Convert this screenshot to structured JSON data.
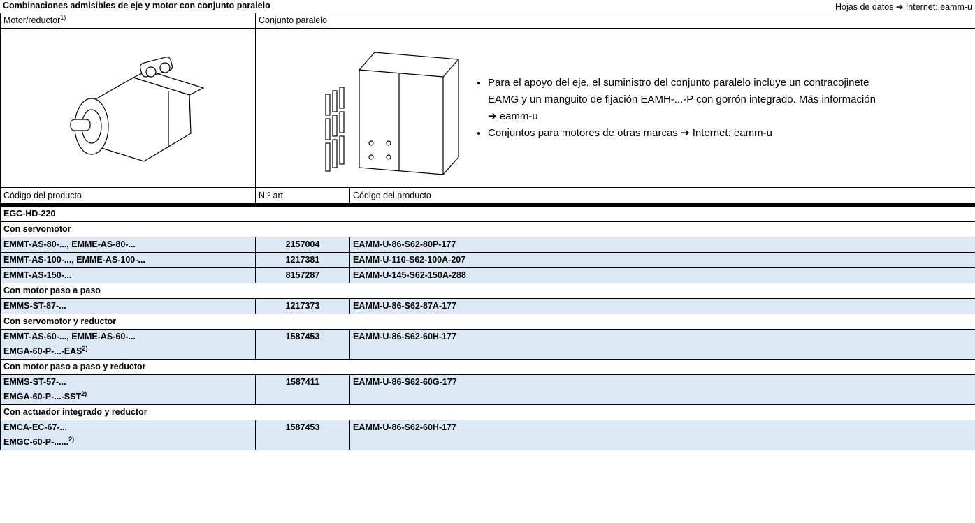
{
  "header": {
    "title": "Combinaciones admisibles de eje y motor con conjunto paralelo",
    "link": "Hojas de datos ➔ Internet: eamm-u"
  },
  "table": {
    "columns": [
      {
        "text": "Motor/reductor",
        "note": "1)"
      },
      {
        "text": "Conjunto paralelo"
      }
    ],
    "bullets": [
      "Para el apoyo del eje, el suministro del conjunto paralelo incluye un contracojinete EAMG y un manguito de fijación EAMH-...-P con gorrón integrado. Más información ➔ eamm-u",
      "Conjuntos para motores de otras marcas ➔ Internet: eamm-u"
    ],
    "subheader": [
      "Código del producto",
      "N.º art.",
      "Código del producto"
    ],
    "axis": "EGC-HD-220",
    "groups": [
      {
        "title": "Con servomotor",
        "rows": [
          {
            "motor": [
              "EMMT-AS-80-..., EMME-AS-80-..."
            ],
            "part_no": 2157004,
            "code": "EAMM-U-86-S62-80P-177"
          },
          {
            "motor": [
              "EMMT-AS-100-..., EMME-AS-100-..."
            ],
            "part_no": 1217381,
            "code": "EAMM-U-110-S62-100A-207"
          },
          {
            "motor": [
              "EMMT-AS-150-..."
            ],
            "part_no": 8157287,
            "code": "EAMM-U-145-S62-150A-288"
          }
        ]
      },
      {
        "title": "Con motor paso a paso",
        "rows": [
          {
            "motor": [
              "EMMS-ST-87-..."
            ],
            "part_no": 1217373,
            "code": "EAMM-U-86-S62-87A-177"
          }
        ]
      },
      {
        "title": "Con servomotor y reductor",
        "rows": [
          {
            "motor": [
              "EMMT-AS-60-..., EMME-AS-60-...",
              "EMGA-60-P-...-EAS"
            ],
            "note": "2)",
            "part_no": 1587453,
            "code": "EAMM-U-86-S62-60H-177"
          }
        ]
      },
      {
        "title": "Con motor paso a paso y reductor",
        "rows": [
          {
            "motor": [
              "EMMS-ST-57-...",
              "EMGA-60-P-...-SST"
            ],
            "note": "2)",
            "part_no": 1587411,
            "code": "EAMM-U-86-S62-60G-177"
          }
        ]
      },
      {
        "title": "Con actuador integrado y reductor",
        "rows": [
          {
            "motor": [
              "EMCA-EC-67-...",
              "EMGC-60-P-......"
            ],
            "note": "2)",
            "part_no": 1587453,
            "code": "EAMM-U-86-S62-60H-177"
          }
        ]
      }
    ]
  }
}
